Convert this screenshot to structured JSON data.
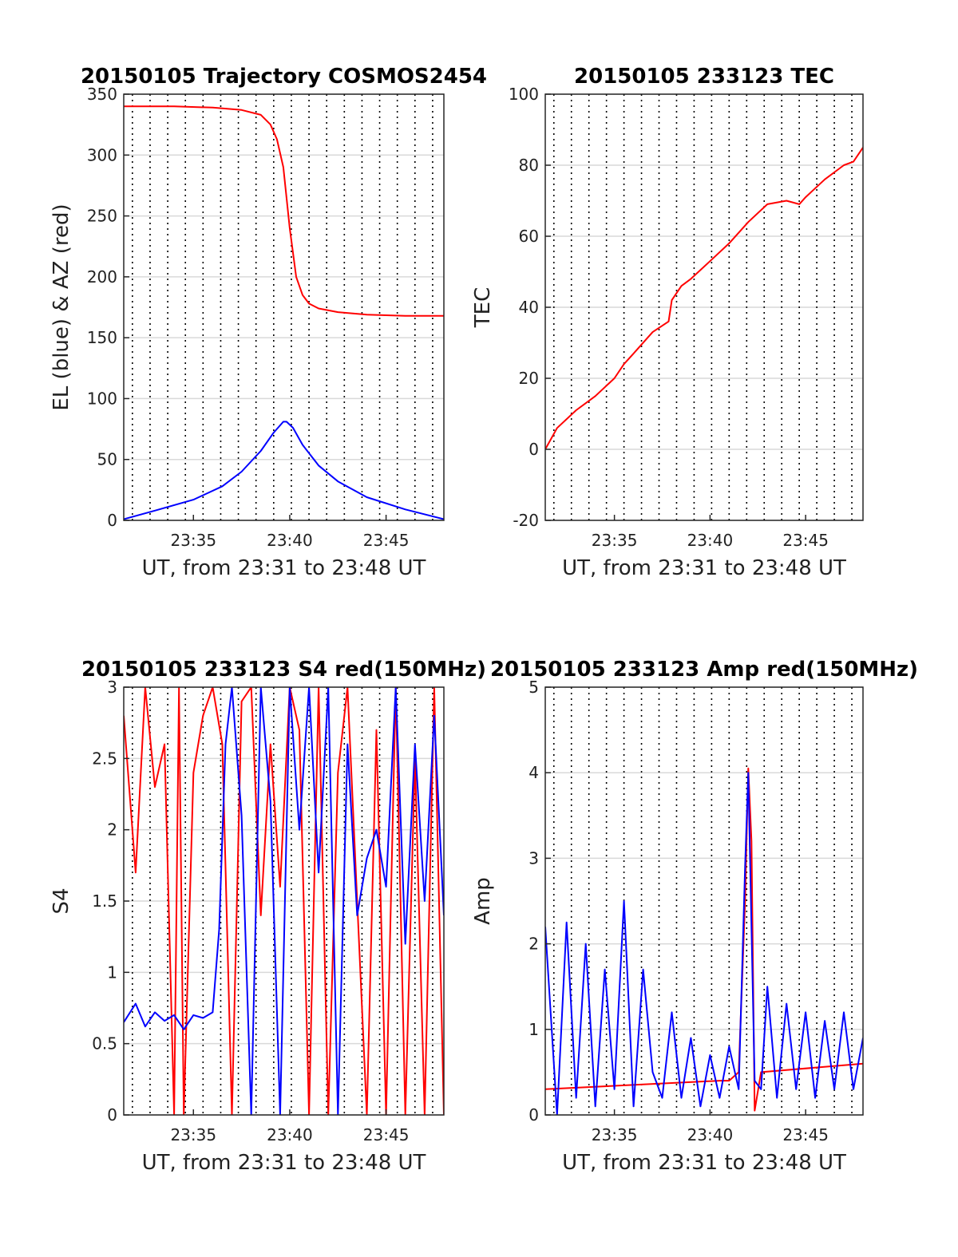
{
  "colors": {
    "az": "#ff0000",
    "el": "#0000ff",
    "grid": "#d9d9d9",
    "vline": "#000000",
    "axis": "#262626"
  },
  "x_axis": {
    "label": "UT, from 23:31 to 23:48 UT",
    "start": "23:31:23",
    "end": "23:48:00",
    "ticks": [
      "23:35",
      "23:40",
      "23:45"
    ],
    "dotted_marker_times": [
      "23:31:50",
      "23:32:45",
      "23:33:40",
      "23:34:35",
      "23:35:30",
      "23:36:25",
      "23:37:20",
      "23:38:15",
      "23:39:10",
      "23:40:05",
      "23:41:00",
      "23:41:55",
      "23:42:50",
      "23:43:45",
      "23:44:40",
      "23:45:35",
      "23:46:30",
      "23:47:25"
    ]
  },
  "chart_data": [
    {
      "type": "line",
      "title": "20150105 Trajectory COSMOS2454",
      "ylabel": "EL (blue) & AZ (red)",
      "ylim": [
        0,
        350
      ],
      "yticks": [
        "0",
        "50",
        "100",
        "150",
        "200",
        "250",
        "300",
        "350"
      ],
      "grid": true,
      "series": [
        {
          "color": "#ff0000",
          "x": [
            "23:31:23",
            "23:34:00",
            "23:36:00",
            "23:37:30",
            "23:38:30",
            "23:39:00",
            "23:39:20",
            "23:39:40",
            "23:40:00",
            "23:40:20",
            "23:40:40",
            "23:41:00",
            "23:41:30",
            "23:42:30",
            "23:44:00",
            "23:46:00",
            "23:48:00"
          ],
          "y": [
            340,
            340,
            339,
            337,
            333,
            325,
            313,
            290,
            240,
            200,
            185,
            178,
            174,
            171,
            169,
            168,
            168
          ]
        },
        {
          "color": "#0000ff",
          "x": [
            "23:31:23",
            "23:33:00",
            "23:35:00",
            "23:36:30",
            "23:37:30",
            "23:38:30",
            "23:39:10",
            "23:39:40",
            "23:39:50",
            "23:40:10",
            "23:40:40",
            "23:41:30",
            "23:42:30",
            "23:44:00",
            "23:46:00",
            "23:48:00"
          ],
          "y": [
            1,
            8,
            17,
            28,
            40,
            57,
            72,
            81,
            81,
            76,
            62,
            45,
            32,
            19,
            9,
            1
          ]
        }
      ]
    },
    {
      "type": "line",
      "title": "20150105 233123 TEC",
      "ylabel": "TEC",
      "ylim": [
        -20,
        100
      ],
      "yticks": [
        "-20",
        "0",
        "20",
        "40",
        "60",
        "80",
        "100"
      ],
      "grid": true,
      "series": [
        {
          "color": "#ff0000",
          "x": [
            "23:31:23",
            "23:32:00",
            "23:33:00",
            "23:34:00",
            "23:35:00",
            "23:35:30",
            "23:36:00",
            "23:37:00",
            "23:37:50",
            "23:38:00",
            "23:38:30",
            "23:39:00",
            "23:40:00",
            "23:41:00",
            "23:42:00",
            "23:43:00",
            "23:44:00",
            "23:44:40",
            "23:45:00",
            "23:46:00",
            "23:47:00",
            "23:47:30",
            "23:48:00"
          ],
          "y": [
            0,
            6,
            11,
            15,
            20,
            24,
            27,
            33,
            36,
            42,
            46,
            48,
            53,
            58,
            64,
            69,
            70,
            69,
            71,
            76,
            80,
            81,
            85
          ]
        }
      ]
    },
    {
      "type": "line",
      "title": "20150105 233123 S4 red(150MHz)",
      "ylabel": "S4",
      "ylim": [
        0,
        3
      ],
      "yticks": [
        "0",
        "0.5",
        "1",
        "1.5",
        "2",
        "2.5",
        "3"
      ],
      "grid": true,
      "series": [
        {
          "color": "#ff0000",
          "x": [
            "23:31:23",
            "23:32:00",
            "23:32:30",
            "23:33:00",
            "23:33:30",
            "23:34:00",
            "23:34:15",
            "23:34:30",
            "23:35:00",
            "23:35:30",
            "23:36:00",
            "23:36:30",
            "23:37:00",
            "23:37:30",
            "23:38:00",
            "23:38:30",
            "23:39:00",
            "23:39:30",
            "23:40:00",
            "23:40:30",
            "23:41:00",
            "23:41:30",
            "23:42:00",
            "23:42:30",
            "23:43:00",
            "23:43:30",
            "23:44:00",
            "23:44:30",
            "23:45:00",
            "23:45:30",
            "23:46:00",
            "23:46:30",
            "23:47:00",
            "23:47:30",
            "23:48:00"
          ],
          "y": [
            2.8,
            1.7,
            3.0,
            2.3,
            2.6,
            0,
            3.0,
            0,
            2.4,
            2.8,
            3.0,
            2.6,
            0,
            2.9,
            3.0,
            1.4,
            2.6,
            1.6,
            3.0,
            2.7,
            0,
            3.0,
            0,
            2.4,
            3.0,
            1.5,
            0,
            2.7,
            0,
            3.0,
            0,
            2.5,
            0,
            3.0,
            0
          ]
        },
        {
          "color": "#0000ff",
          "x": [
            "23:31:23",
            "23:32:00",
            "23:32:30",
            "23:33:00",
            "23:33:30",
            "23:34:00",
            "23:34:30",
            "23:35:00",
            "23:35:30",
            "23:36:00",
            "23:36:20",
            "23:36:40",
            "23:37:00",
            "23:37:30",
            "23:38:00",
            "23:38:30",
            "23:39:00",
            "23:39:30",
            "23:40:00",
            "23:40:30",
            "23:41:00",
            "23:41:30",
            "23:42:00",
            "23:42:30",
            "23:43:00",
            "23:43:30",
            "23:44:00",
            "23:44:30",
            "23:45:00",
            "23:45:30",
            "23:46:00",
            "23:46:30",
            "23:47:00",
            "23:47:30",
            "23:48:00"
          ],
          "y": [
            0.65,
            0.78,
            0.62,
            0.72,
            0.66,
            0.7,
            0.6,
            0.7,
            0.68,
            0.72,
            1.3,
            2.6,
            3.0,
            2.1,
            0,
            3.0,
            2.2,
            0,
            3.0,
            2.0,
            3.0,
            1.7,
            3.0,
            0,
            2.6,
            1.4,
            1.8,
            2.0,
            1.6,
            3.0,
            1.2,
            2.6,
            1.5,
            2.8,
            1.4
          ]
        }
      ]
    },
    {
      "type": "line",
      "title": "20150105 233123 Amp red(150MHz)",
      "ylabel": "Amp",
      "ylim": [
        0,
        5
      ],
      "yticks": [
        "0",
        "1",
        "2",
        "3",
        "4",
        "5"
      ],
      "grid": true,
      "series": [
        {
          "color": "#ff0000",
          "x": [
            "23:31:23",
            "23:40:30",
            "23:41:00",
            "23:41:30",
            "23:41:50",
            "23:42:00",
            "23:42:10",
            "23:42:20",
            "23:42:40",
            "23:48:00"
          ],
          "y": [
            0.3,
            0.4,
            0.4,
            0.5,
            2.5,
            4.05,
            3.2,
            0.05,
            0.5,
            0.6
          ]
        },
        {
          "color": "#0000ff",
          "x": [
            "23:31:23",
            "23:32:00",
            "23:32:30",
            "23:33:00",
            "23:33:30",
            "23:34:00",
            "23:34:30",
            "23:35:00",
            "23:35:30",
            "23:36:00",
            "23:36:30",
            "23:37:00",
            "23:37:30",
            "23:38:00",
            "23:38:30",
            "23:39:00",
            "23:39:30",
            "23:40:00",
            "23:40:30",
            "23:41:00",
            "23:41:30",
            "23:41:50",
            "23:42:00",
            "23:42:20",
            "23:42:40",
            "23:43:00",
            "23:43:30",
            "23:44:00",
            "23:44:30",
            "23:45:00",
            "23:45:30",
            "23:46:00",
            "23:46:30",
            "23:47:00",
            "23:47:30",
            "23:48:00"
          ],
          "y": [
            2.2,
            0,
            2.25,
            0.2,
            2.0,
            0.1,
            1.7,
            0.3,
            2.5,
            0.1,
            1.7,
            0.5,
            0.2,
            1.2,
            0.2,
            0.9,
            0.1,
            0.7,
            0.2,
            0.8,
            0.3,
            2.9,
            4.0,
            0.4,
            0.3,
            1.5,
            0.2,
            1.3,
            0.3,
            1.2,
            0.2,
            1.1,
            0.3,
            1.2,
            0.3,
            0.9
          ]
        }
      ]
    }
  ]
}
